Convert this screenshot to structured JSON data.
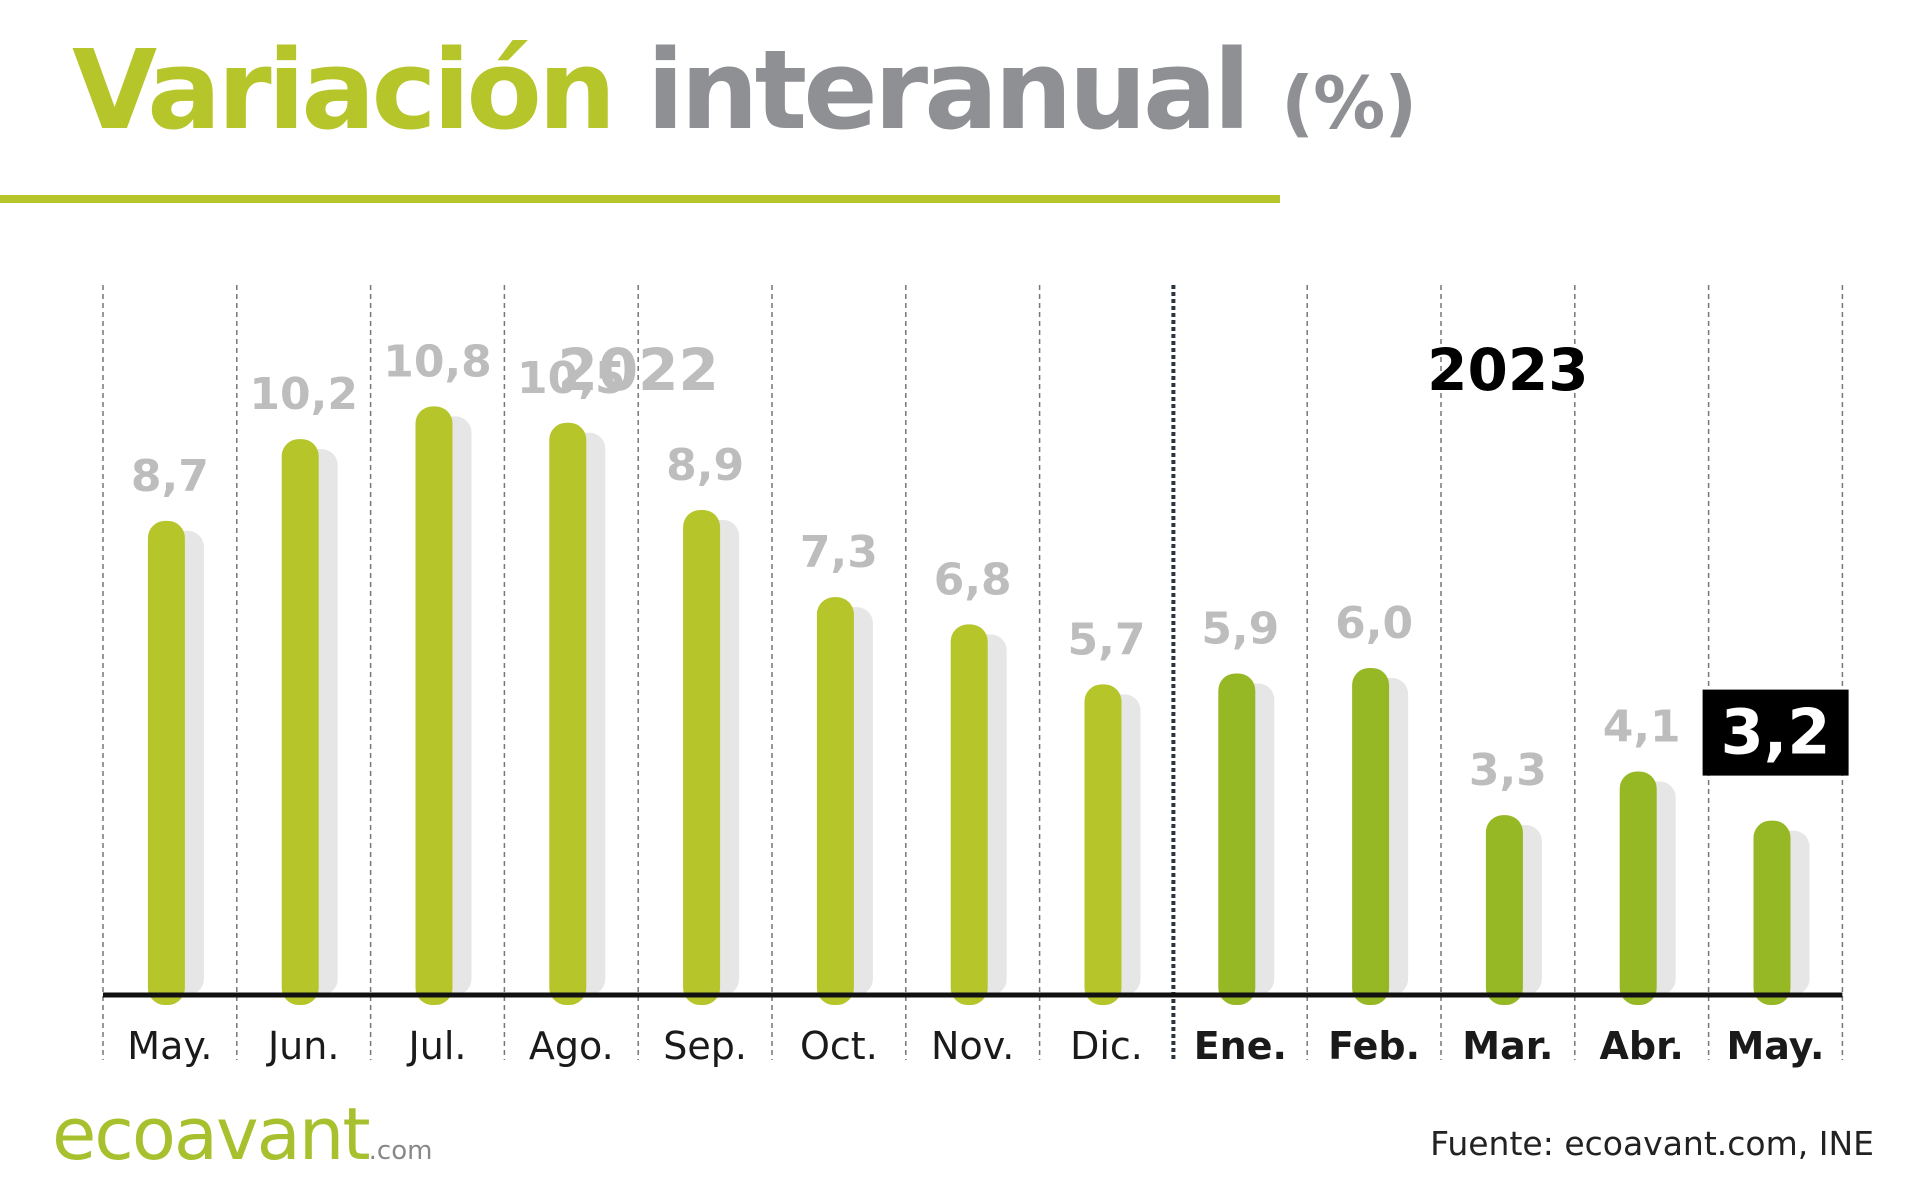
{
  "title": {
    "part1": "Variación",
    "part2": "interanual",
    "unit": "(%)"
  },
  "chart_data": {
    "type": "bar",
    "categories": [
      "May.",
      "Jun.",
      "Jul.",
      "Ago.",
      "Sep.",
      "Oct.",
      "Nov.",
      "Dic.",
      "Ene.",
      "Feb.",
      "Mar.",
      "Abr.",
      "May."
    ],
    "values": [
      8.7,
      10.2,
      10.8,
      10.5,
      8.9,
      7.3,
      6.8,
      5.7,
      5.9,
      6.0,
      3.3,
      4.1,
      3.2
    ],
    "value_labels": [
      "8,7",
      "10,2",
      "10,8",
      "10,5",
      "8,9",
      "7,3",
      "6,8",
      "5,7",
      "5,9",
      "6,0",
      "3,3",
      "4,1",
      "3,2"
    ],
    "years": [
      {
        "label": "2022",
        "from": 0,
        "to": 7,
        "color": "#bdbdbd"
      },
      {
        "label": "2023",
        "from": 8,
        "to": 12,
        "color": "#000000"
      }
    ],
    "highlight_index": 12,
    "ylim": [
      0,
      12
    ],
    "grid": true,
    "colors": {
      "bar_2022": "#b5c52a",
      "bar_2023": "#95b824",
      "bar_shadow": "#e6e6e6",
      "value_label": "#bdbdbd",
      "highlight_bg": "#000000",
      "highlight_text": "#ffffff"
    }
  },
  "footer": {
    "logo_main": "ecoavant",
    "logo_suffix": ".com",
    "source": "Fuente: ecoavant.com, INE"
  }
}
